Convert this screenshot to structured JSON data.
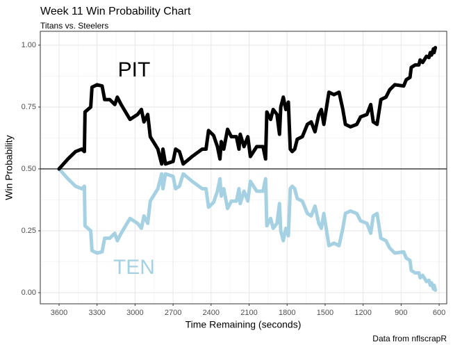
{
  "chart_data": {
    "type": "line",
    "title": "Week 11 Win Probability Chart",
    "subtitle": "Titans vs. Steelers",
    "x_label": "Time Remaining (seconds)",
    "y_label": "Win Probability",
    "caption": "Data from nflscrapR",
    "x": [
      3600,
      3530,
      3470,
      3420,
      3400,
      3395,
      3350,
      3340,
      3300,
      3260,
      3240,
      3200,
      3160,
      3140,
      3110,
      3040,
      2980,
      2950,
      2930,
      2900,
      2880,
      2820,
      2790,
      2780,
      2760,
      2700,
      2680,
      2650,
      2620,
      2550,
      2470,
      2440,
      2420,
      2380,
      2350,
      2330,
      2320,
      2300,
      2270,
      2240,
      2200,
      2180,
      2170,
      2140,
      2110,
      2090,
      2040,
      1990,
      1970,
      1960,
      1930,
      1910,
      1880,
      1860,
      1850,
      1830,
      1810,
      1790,
      1775,
      1760,
      1740,
      1720,
      1680,
      1640,
      1610,
      1580,
      1550,
      1530,
      1510,
      1470,
      1430,
      1390,
      1360,
      1340,
      1300,
      1250,
      1220,
      1170,
      1140,
      1120,
      1090,
      1060,
      1020,
      990,
      950,
      880,
      860,
      830,
      820,
      790,
      760,
      750,
      730,
      700,
      680,
      670,
      660,
      645,
      640,
      630
    ],
    "series": [
      {
        "name": "PIT",
        "color": "#000000",
        "values": [
          0.5,
          0.54,
          0.57,
          0.58,
          0.57,
          0.73,
          0.75,
          0.83,
          0.84,
          0.835,
          0.78,
          0.78,
          0.76,
          0.79,
          0.76,
          0.7,
          0.72,
          0.74,
          0.69,
          0.72,
          0.63,
          0.58,
          0.52,
          0.58,
          0.52,
          0.53,
          0.58,
          0.57,
          0.52,
          0.55,
          0.58,
          0.58,
          0.655,
          0.635,
          0.59,
          0.54,
          0.61,
          0.58,
          0.66,
          0.63,
          0.63,
          0.58,
          0.64,
          0.59,
          0.63,
          0.55,
          0.59,
          0.59,
          0.54,
          0.73,
          0.7,
          0.74,
          0.72,
          0.64,
          0.75,
          0.79,
          0.74,
          0.77,
          0.58,
          0.57,
          0.58,
          0.62,
          0.63,
          0.68,
          0.69,
          0.65,
          0.72,
          0.74,
          0.68,
          0.81,
          0.8,
          0.81,
          0.74,
          0.68,
          0.67,
          0.68,
          0.71,
          0.72,
          0.76,
          0.69,
          0.68,
          0.78,
          0.79,
          0.82,
          0.84,
          0.835,
          0.86,
          0.87,
          0.91,
          0.92,
          0.92,
          0.94,
          0.93,
          0.955,
          0.95,
          0.97,
          0.96,
          0.985,
          0.97,
          0.99
        ]
      },
      {
        "name": "TEN",
        "color": "#a6d1e2",
        "values": [
          0.5,
          0.46,
          0.43,
          0.42,
          0.43,
          0.27,
          0.25,
          0.17,
          0.16,
          0.165,
          0.22,
          0.22,
          0.24,
          0.21,
          0.24,
          0.3,
          0.28,
          0.26,
          0.31,
          0.28,
          0.37,
          0.42,
          0.48,
          0.42,
          0.48,
          0.47,
          0.42,
          0.43,
          0.48,
          0.45,
          0.42,
          0.42,
          0.345,
          0.365,
          0.41,
          0.46,
          0.39,
          0.42,
          0.34,
          0.37,
          0.37,
          0.42,
          0.36,
          0.41,
          0.37,
          0.45,
          0.41,
          0.41,
          0.46,
          0.27,
          0.3,
          0.26,
          0.28,
          0.36,
          0.25,
          0.21,
          0.26,
          0.23,
          0.42,
          0.43,
          0.42,
          0.38,
          0.37,
          0.32,
          0.31,
          0.35,
          0.28,
          0.26,
          0.32,
          0.19,
          0.2,
          0.19,
          0.26,
          0.32,
          0.33,
          0.32,
          0.29,
          0.28,
          0.24,
          0.31,
          0.32,
          0.22,
          0.21,
          0.18,
          0.16,
          0.165,
          0.14,
          0.13,
          0.09,
          0.08,
          0.08,
          0.06,
          0.07,
          0.045,
          0.05,
          0.03,
          0.04,
          0.015,
          0.03,
          0.01
        ]
      }
    ],
    "annotations": [
      {
        "text": "PIT",
        "x": 3008,
        "y": 0.896,
        "color": "#000000"
      },
      {
        "text": "TEN",
        "x": 3008,
        "y": 0.098,
        "color": "#a6d1e2"
      }
    ],
    "hline": 0.5,
    "xlim": [
      3748,
      540
    ],
    "ylim": [
      -0.045,
      1.056
    ],
    "xticks": [
      3600,
      3300,
      3000,
      2700,
      2400,
      2100,
      1800,
      1500,
      1200,
      900,
      600
    ],
    "yticks": [
      {
        "value": 0,
        "label": "0.00"
      },
      {
        "value": 0.25,
        "label": "0.25"
      },
      {
        "value": 0.5,
        "label": "0.50"
      },
      {
        "value": 0.75,
        "label": "0.75"
      },
      {
        "value": 1,
        "label": "1.00"
      }
    ],
    "grid": true
  }
}
